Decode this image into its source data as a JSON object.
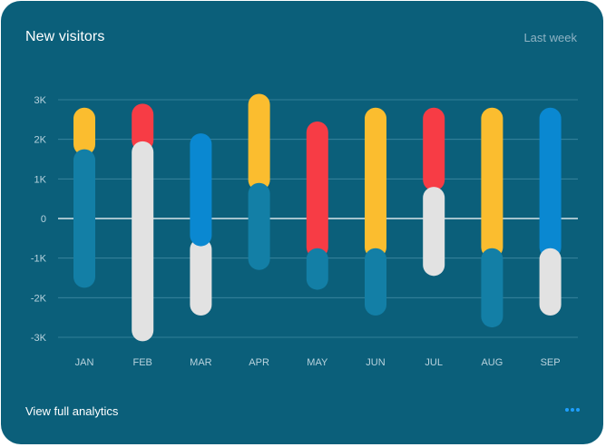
{
  "card": {
    "title": "New visitors",
    "period_label": "Last week",
    "footer_link": "View full analytics",
    "more_icon": "more-horizontal-icon"
  },
  "colors": {
    "background": "#0b5f7a",
    "grid": "#3f8aa3",
    "zero_line": "#ffffff",
    "teal": "#137fa6",
    "white": "#e2e2e2",
    "blue": "#0a88d1",
    "red": "#f73c45",
    "yellow": "#fbbd2f",
    "accent": "#1e9fff"
  },
  "chart_data": {
    "type": "bar",
    "subtype": "stacked-range-rounded",
    "title": "New visitors",
    "categories": [
      "JAN",
      "FEB",
      "MAR",
      "APR",
      "MAY",
      "JUN",
      "JUL",
      "AUG",
      "SEP"
    ],
    "yticks": [
      3000,
      2000,
      1000,
      0,
      -1000,
      -2000,
      -3000
    ],
    "ytick_labels": [
      "3K",
      "2K",
      "1K",
      "0",
      "-1K",
      "-2K",
      "-3K"
    ],
    "ylim": [
      -3000,
      3000
    ],
    "grid": true,
    "legend": "none",
    "bars": [
      {
        "category": "JAN",
        "segments": [
          {
            "color": "yellow",
            "from": 1600,
            "to": 2800
          },
          {
            "color": "teal",
            "from": -1750,
            "to": 1750
          }
        ]
      },
      {
        "category": "FEB",
        "segments": [
          {
            "color": "red",
            "from": 1700,
            "to": 2900
          },
          {
            "color": "white",
            "from": -3100,
            "to": 1950
          }
        ]
      },
      {
        "category": "MAR",
        "segments": [
          {
            "color": "white",
            "from": -2450,
            "to": -500
          },
          {
            "color": "blue",
            "from": -700,
            "to": 2150
          }
        ]
      },
      {
        "category": "APR",
        "segments": [
          {
            "color": "yellow",
            "from": 700,
            "to": 3150
          },
          {
            "color": "teal",
            "from": -1300,
            "to": 900
          }
        ]
      },
      {
        "category": "MAY",
        "segments": [
          {
            "color": "red",
            "from": -1000,
            "to": 2450
          },
          {
            "color": "teal",
            "from": -1800,
            "to": -750
          }
        ]
      },
      {
        "category": "JUN",
        "segments": [
          {
            "color": "yellow",
            "from": -1000,
            "to": 2800
          },
          {
            "color": "teal",
            "from": -2450,
            "to": -750
          }
        ]
      },
      {
        "category": "JUL",
        "segments": [
          {
            "color": "red",
            "from": 700,
            "to": 2800
          },
          {
            "color": "white",
            "from": -1450,
            "to": 800
          }
        ]
      },
      {
        "category": "AUG",
        "segments": [
          {
            "color": "yellow",
            "from": -1000,
            "to": 2800
          },
          {
            "color": "teal",
            "from": -2750,
            "to": -750
          }
        ]
      },
      {
        "category": "SEP",
        "segments": [
          {
            "color": "blue",
            "from": -1000,
            "to": 2800
          },
          {
            "color": "white",
            "from": -2450,
            "to": -750
          }
        ]
      }
    ]
  }
}
